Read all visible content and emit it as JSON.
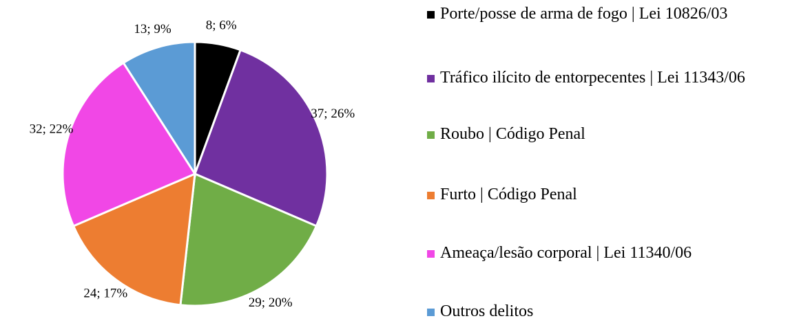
{
  "chart_data": {
    "type": "pie",
    "categories": [
      "Porte/posse de arma de fogo | Lei 10826/03",
      "Tráfico ilícito de entorpecentes | Lei 11343/06",
      "Roubo | Código Penal",
      "Furto | Código Penal",
      "Ameaça/lesão corporal | Lei 11340/06",
      "Outros delitos"
    ],
    "values": [
      8,
      37,
      29,
      24,
      32,
      13
    ],
    "value_labels": [
      "8; 6%",
      "37; 26%",
      "29; 20%",
      "24; 17%",
      "32; 22%",
      "13; 9%"
    ],
    "colors": [
      "#000000",
      "#7030a0",
      "#70ad47",
      "#ed7d31",
      "#f147e6",
      "#5b9bd5"
    ],
    "legend": "right"
  }
}
